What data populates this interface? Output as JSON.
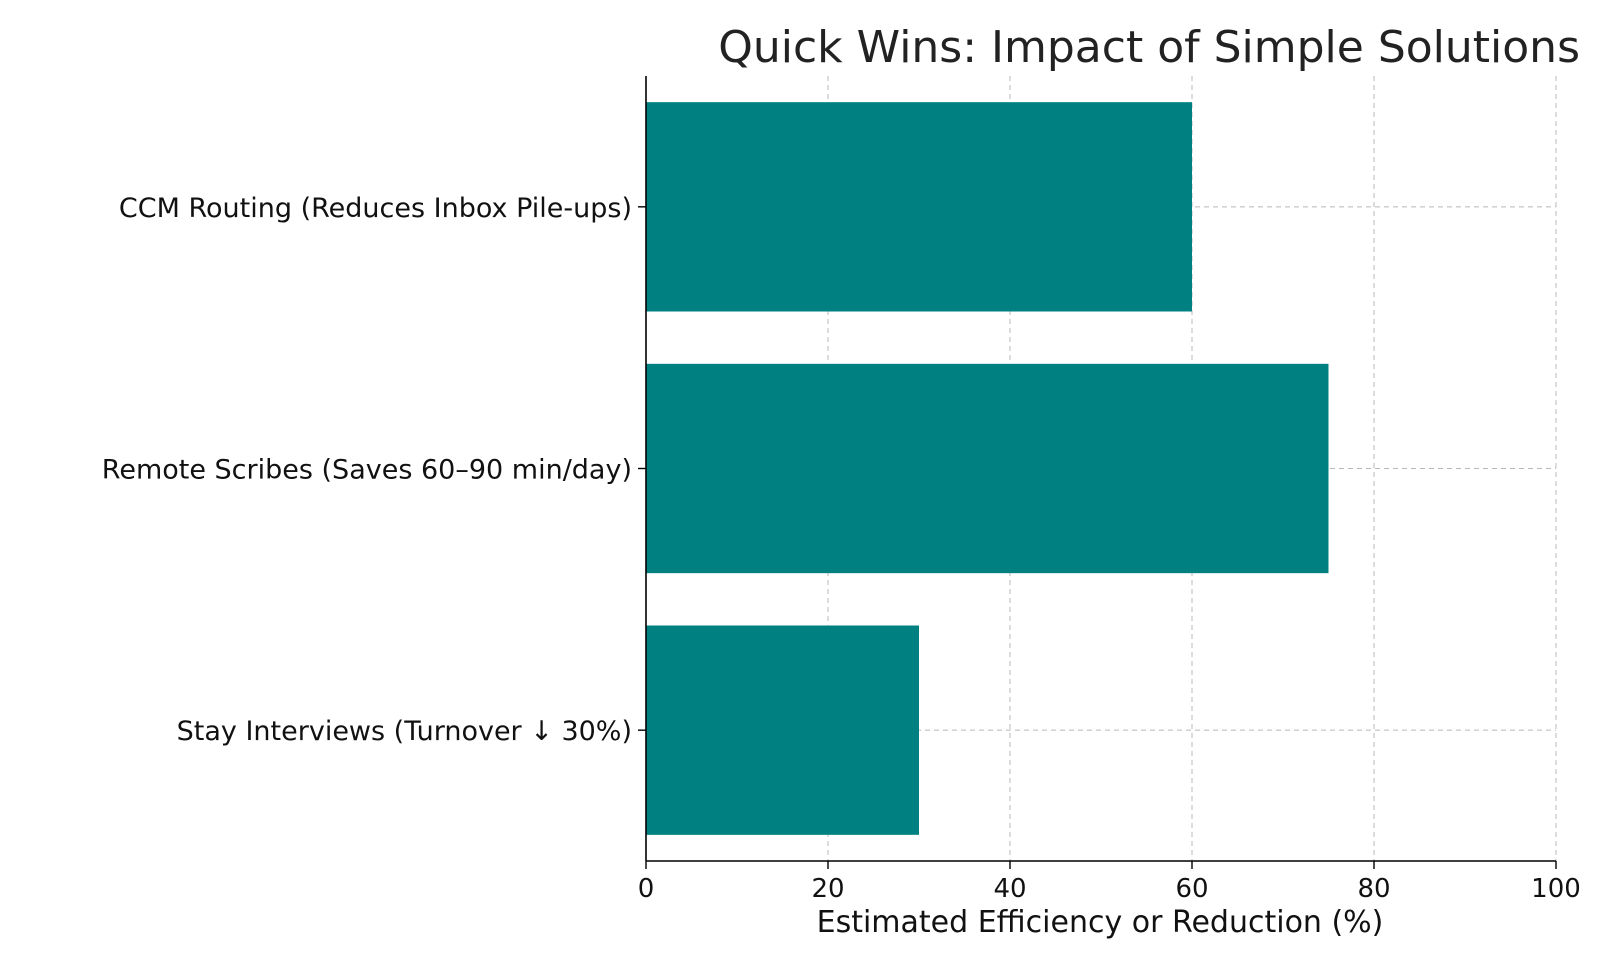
{
  "chart_data": {
    "type": "bar",
    "orientation": "horizontal",
    "title": "Quick Wins: Impact of Simple Solutions",
    "xlabel": "Estimated Efficiency or Reduction (%)",
    "ylabel": "",
    "categories": [
      "CCM Routing (Reduces Inbox Pile-ups)",
      "Remote Scribes (Saves 60–90 min/day)",
      "Stay Interviews (Turnover ↓ 30%)"
    ],
    "values": [
      60,
      75,
      30
    ],
    "xlim": [
      0,
      100
    ],
    "xticks": [
      0,
      20,
      40,
      60,
      80,
      100
    ],
    "grid": true,
    "bar_color": "#008080"
  }
}
